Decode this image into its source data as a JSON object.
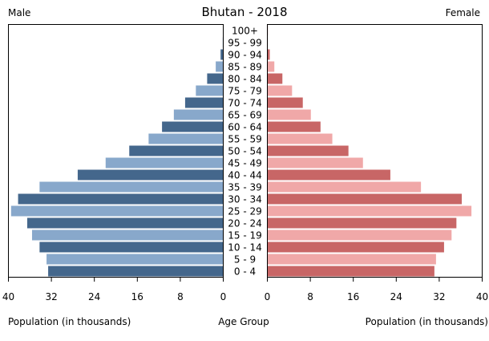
{
  "chart_data": {
    "type": "bar",
    "title": "Bhutan - 2018",
    "left_label": "Male",
    "right_label": "Female",
    "xlabel_left": "Population (in thousands)",
    "xlabel_center": "Age Group",
    "xlabel_right": "Population (in thousands)",
    "xlim": [
      0,
      40
    ],
    "ticks_left": [
      "40",
      "32",
      "24",
      "16",
      "8",
      "0"
    ],
    "ticks_right": [
      "0",
      "8",
      "16",
      "24",
      "32",
      "40"
    ],
    "tick_values": [
      0,
      8,
      16,
      24,
      32,
      40
    ],
    "grid": false,
    "categories": [
      "0 - 4",
      "5 - 9",
      "10 - 14",
      "15 - 19",
      "20 - 24",
      "25 - 29",
      "30 - 34",
      "35 - 39",
      "40 - 44",
      "45 - 49",
      "50 - 54",
      "55 - 59",
      "60 - 64",
      "65 - 69",
      "70 - 74",
      "75 - 79",
      "80 - 84",
      "85 - 89",
      "90 - 94",
      "95 - 99",
      "100+"
    ],
    "series": [
      {
        "name": "Male",
        "values": [
          32.6,
          32.9,
          34.2,
          35.6,
          36.5,
          39.5,
          38.2,
          34.2,
          27.1,
          21.9,
          17.5,
          13.9,
          11.4,
          9.2,
          7.1,
          5.1,
          3.0,
          1.4,
          0.5,
          0.1,
          0.05
        ],
        "colors": [
          "#44678c",
          "#88a8cb"
        ]
      },
      {
        "name": "Female",
        "values": [
          31.1,
          31.4,
          32.9,
          34.3,
          35.2,
          38.0,
          36.2,
          28.6,
          22.9,
          17.8,
          15.1,
          12.1,
          9.9,
          8.1,
          6.6,
          4.6,
          2.8,
          1.3,
          0.45,
          0.1,
          0.1
        ],
        "colors": [
          "#c86666",
          "#f0a8a8"
        ]
      }
    ]
  }
}
